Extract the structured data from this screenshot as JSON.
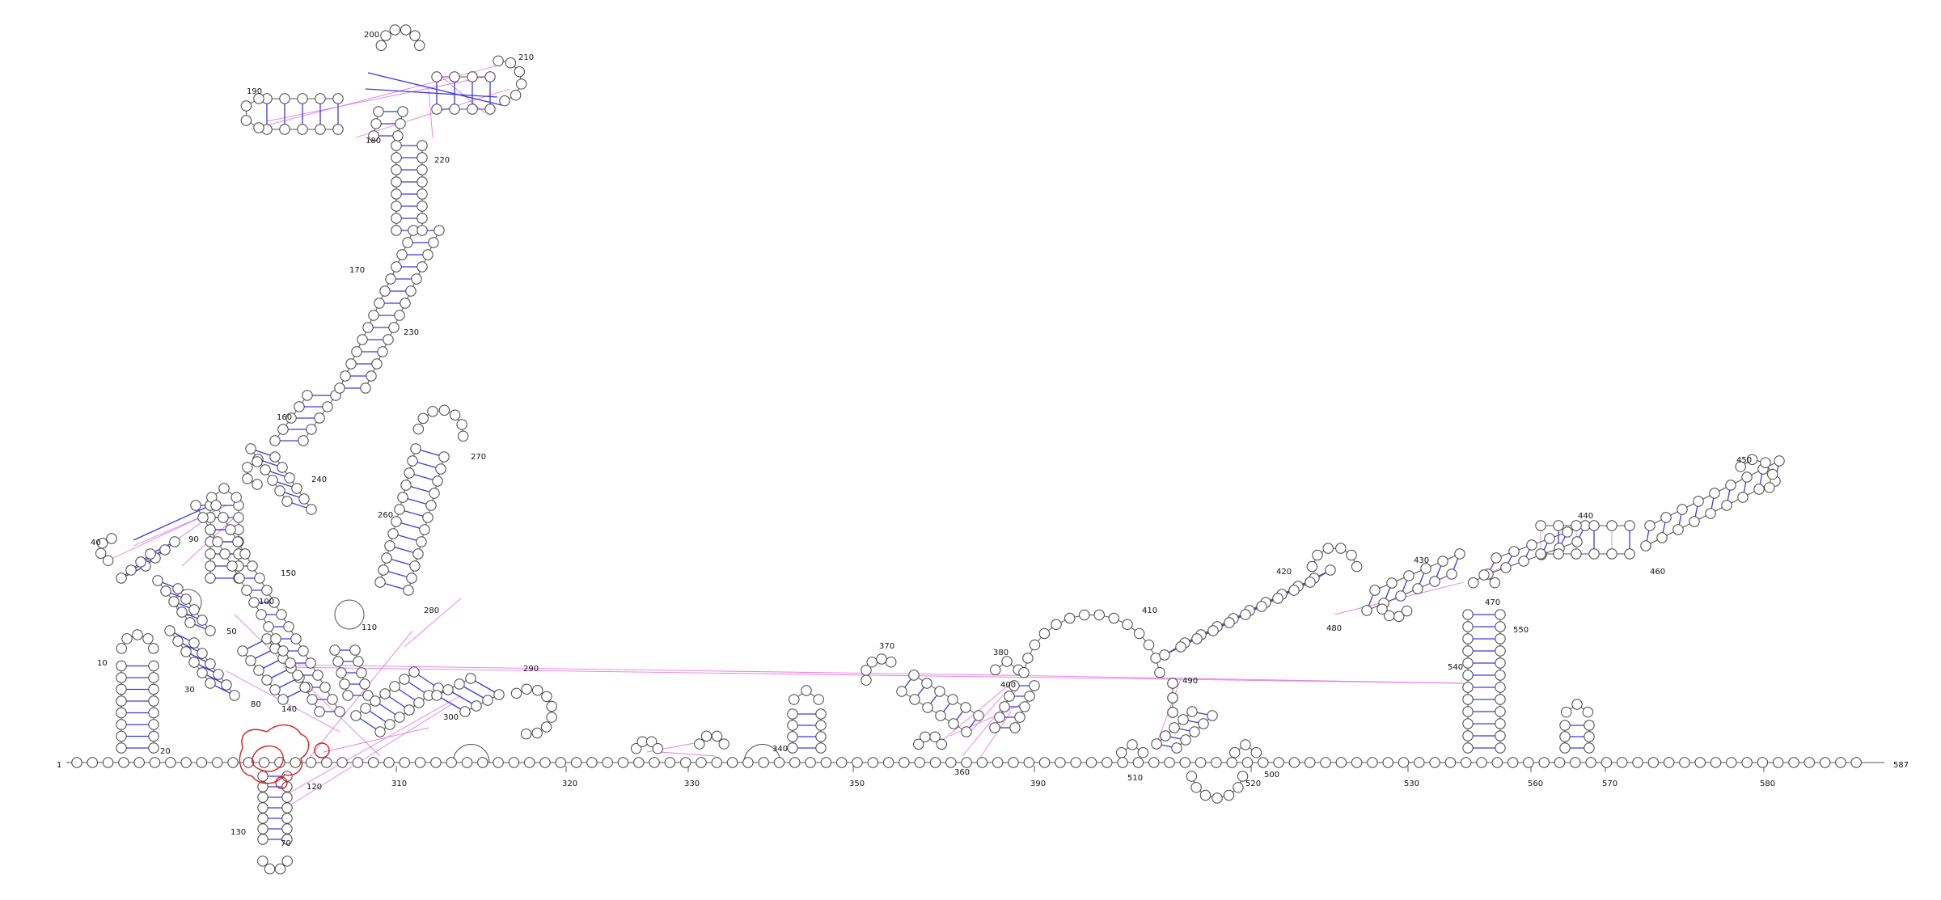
{
  "diagram": {
    "sequence_length": "587",
    "colors": {
      "backbone": "#555555",
      "base_pair": "#3a3ae0",
      "tertiary": "#e070e0",
      "highlight": "#d02020",
      "nucleotide_fill": "#ffffff"
    },
    "labels": [
      "1",
      "10",
      "20",
      "30",
      "40",
      "50",
      "70",
      "80",
      "90",
      "100",
      "110",
      "120",
      "130",
      "140",
      "150",
      "160",
      "170",
      "180",
      "190",
      "200",
      "210",
      "220",
      "230",
      "240",
      "260",
      "270",
      "280",
      "290",
      "300",
      "310",
      "320",
      "330",
      "340",
      "350",
      "360",
      "370",
      "380",
      "390",
      "400",
      "410",
      "420",
      "430",
      "440",
      "450",
      "460",
      "470",
      "480",
      "490",
      "500",
      "510",
      "520",
      "530",
      "540",
      "550",
      "560",
      "570",
      "580",
      "587"
    ]
  }
}
